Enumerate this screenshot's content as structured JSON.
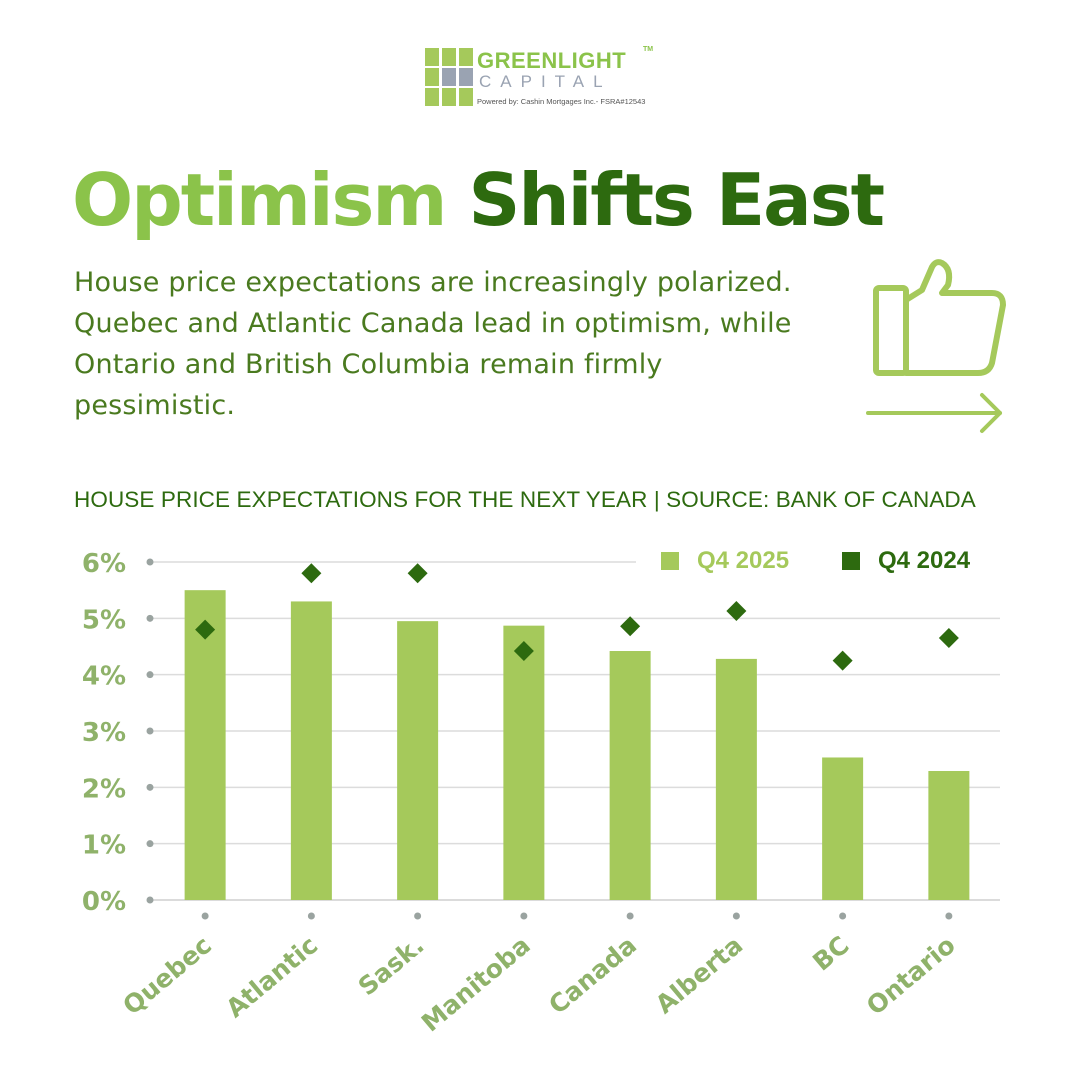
{
  "logo": {
    "name": "GREENLIGHT",
    "tm": "TM",
    "sub": "CAPITAL",
    "powered": "Powered by:  Cashin Mortgages Inc.- FSRA#12543"
  },
  "title": {
    "part1": "Optimism",
    "part2": "Shifts East"
  },
  "description": "House price expectations are increasingly polarized. Quebec and Atlantic Canada lead in optimism, while Ontario and British Columbia remain firmly pessimistic.",
  "colors": {
    "light_green": "#a5c95b",
    "dark_green": "#2d6a0f",
    "axis_text": "#8fb26a"
  },
  "icons": [
    "thumbs-up-icon",
    "arrow-right-icon"
  ],
  "chart_data": {
    "type": "bar",
    "title": "HOUSE PRICE EXPECTATIONS FOR THE NEXT YEAR | SOURCE: BANK OF CANADA",
    "categories": [
      "Quebec",
      "Atlantic",
      "Sask.",
      "Manitoba",
      "Canada",
      "Alberta",
      "BC",
      "Ontario"
    ],
    "series": [
      {
        "name": "Q4 2025",
        "mark": "bar",
        "values": [
          5.5,
          5.3,
          4.95,
          4.87,
          4.42,
          4.28,
          2.53,
          2.29
        ]
      },
      {
        "name": "Q4 2024",
        "mark": "diamond",
        "values": [
          4.8,
          5.8,
          5.8,
          4.42,
          4.86,
          5.13,
          4.25,
          4.65
        ]
      }
    ],
    "ylim": [
      0,
      6
    ],
    "yticks": [
      "0%",
      "1%",
      "2%",
      "3%",
      "4%",
      "5%",
      "6%"
    ],
    "grid": true,
    "legend": "top-right"
  }
}
